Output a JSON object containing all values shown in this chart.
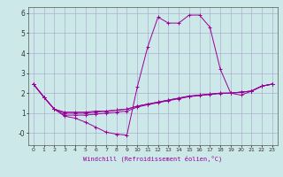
{
  "title": "",
  "xlabel": "Windchill (Refroidissement éolien,°C)",
  "bg_color": "#cce8e8",
  "line_color": "#990099",
  "grid_color": "#aaaacc",
  "xlim": [
    -0.5,
    23.5
  ],
  "ylim": [
    -0.6,
    6.3
  ],
  "xticks": [
    0,
    1,
    2,
    3,
    4,
    5,
    6,
    7,
    8,
    9,
    10,
    11,
    12,
    13,
    14,
    15,
    16,
    17,
    18,
    19,
    20,
    21,
    22,
    23
  ],
  "yticks": [
    0,
    1,
    2,
    3,
    4,
    5,
    6
  ],
  "ytick_labels": [
    "-0",
    "1",
    "2",
    "3",
    "4",
    "5",
    "6"
  ],
  "lines": [
    [
      2.45,
      1.8,
      1.2,
      0.85,
      0.75,
      0.55,
      0.3,
      0.05,
      -0.05,
      -0.1,
      2.3,
      4.3,
      5.8,
      5.5,
      5.5,
      5.9,
      5.9,
      5.3,
      3.2,
      2.0,
      1.9,
      2.1,
      2.35,
      2.45
    ],
    [
      2.45,
      1.8,
      1.2,
      1.05,
      1.05,
      1.05,
      1.1,
      1.1,
      1.15,
      1.2,
      1.35,
      1.45,
      1.55,
      1.65,
      1.75,
      1.85,
      1.9,
      1.95,
      2.0,
      2.0,
      2.05,
      2.1,
      2.35,
      2.45
    ],
    [
      2.45,
      1.8,
      1.2,
      1.0,
      1.0,
      1.0,
      1.05,
      1.1,
      1.15,
      1.2,
      1.35,
      1.45,
      1.55,
      1.65,
      1.75,
      1.85,
      1.9,
      1.95,
      2.0,
      2.0,
      2.05,
      2.1,
      2.35,
      2.45
    ],
    [
      2.45,
      1.8,
      1.2,
      0.9,
      0.9,
      0.9,
      0.95,
      1.0,
      1.05,
      1.1,
      1.3,
      1.42,
      1.52,
      1.62,
      1.72,
      1.82,
      1.88,
      1.93,
      1.98,
      2.0,
      2.05,
      2.1,
      2.35,
      2.45
    ]
  ]
}
